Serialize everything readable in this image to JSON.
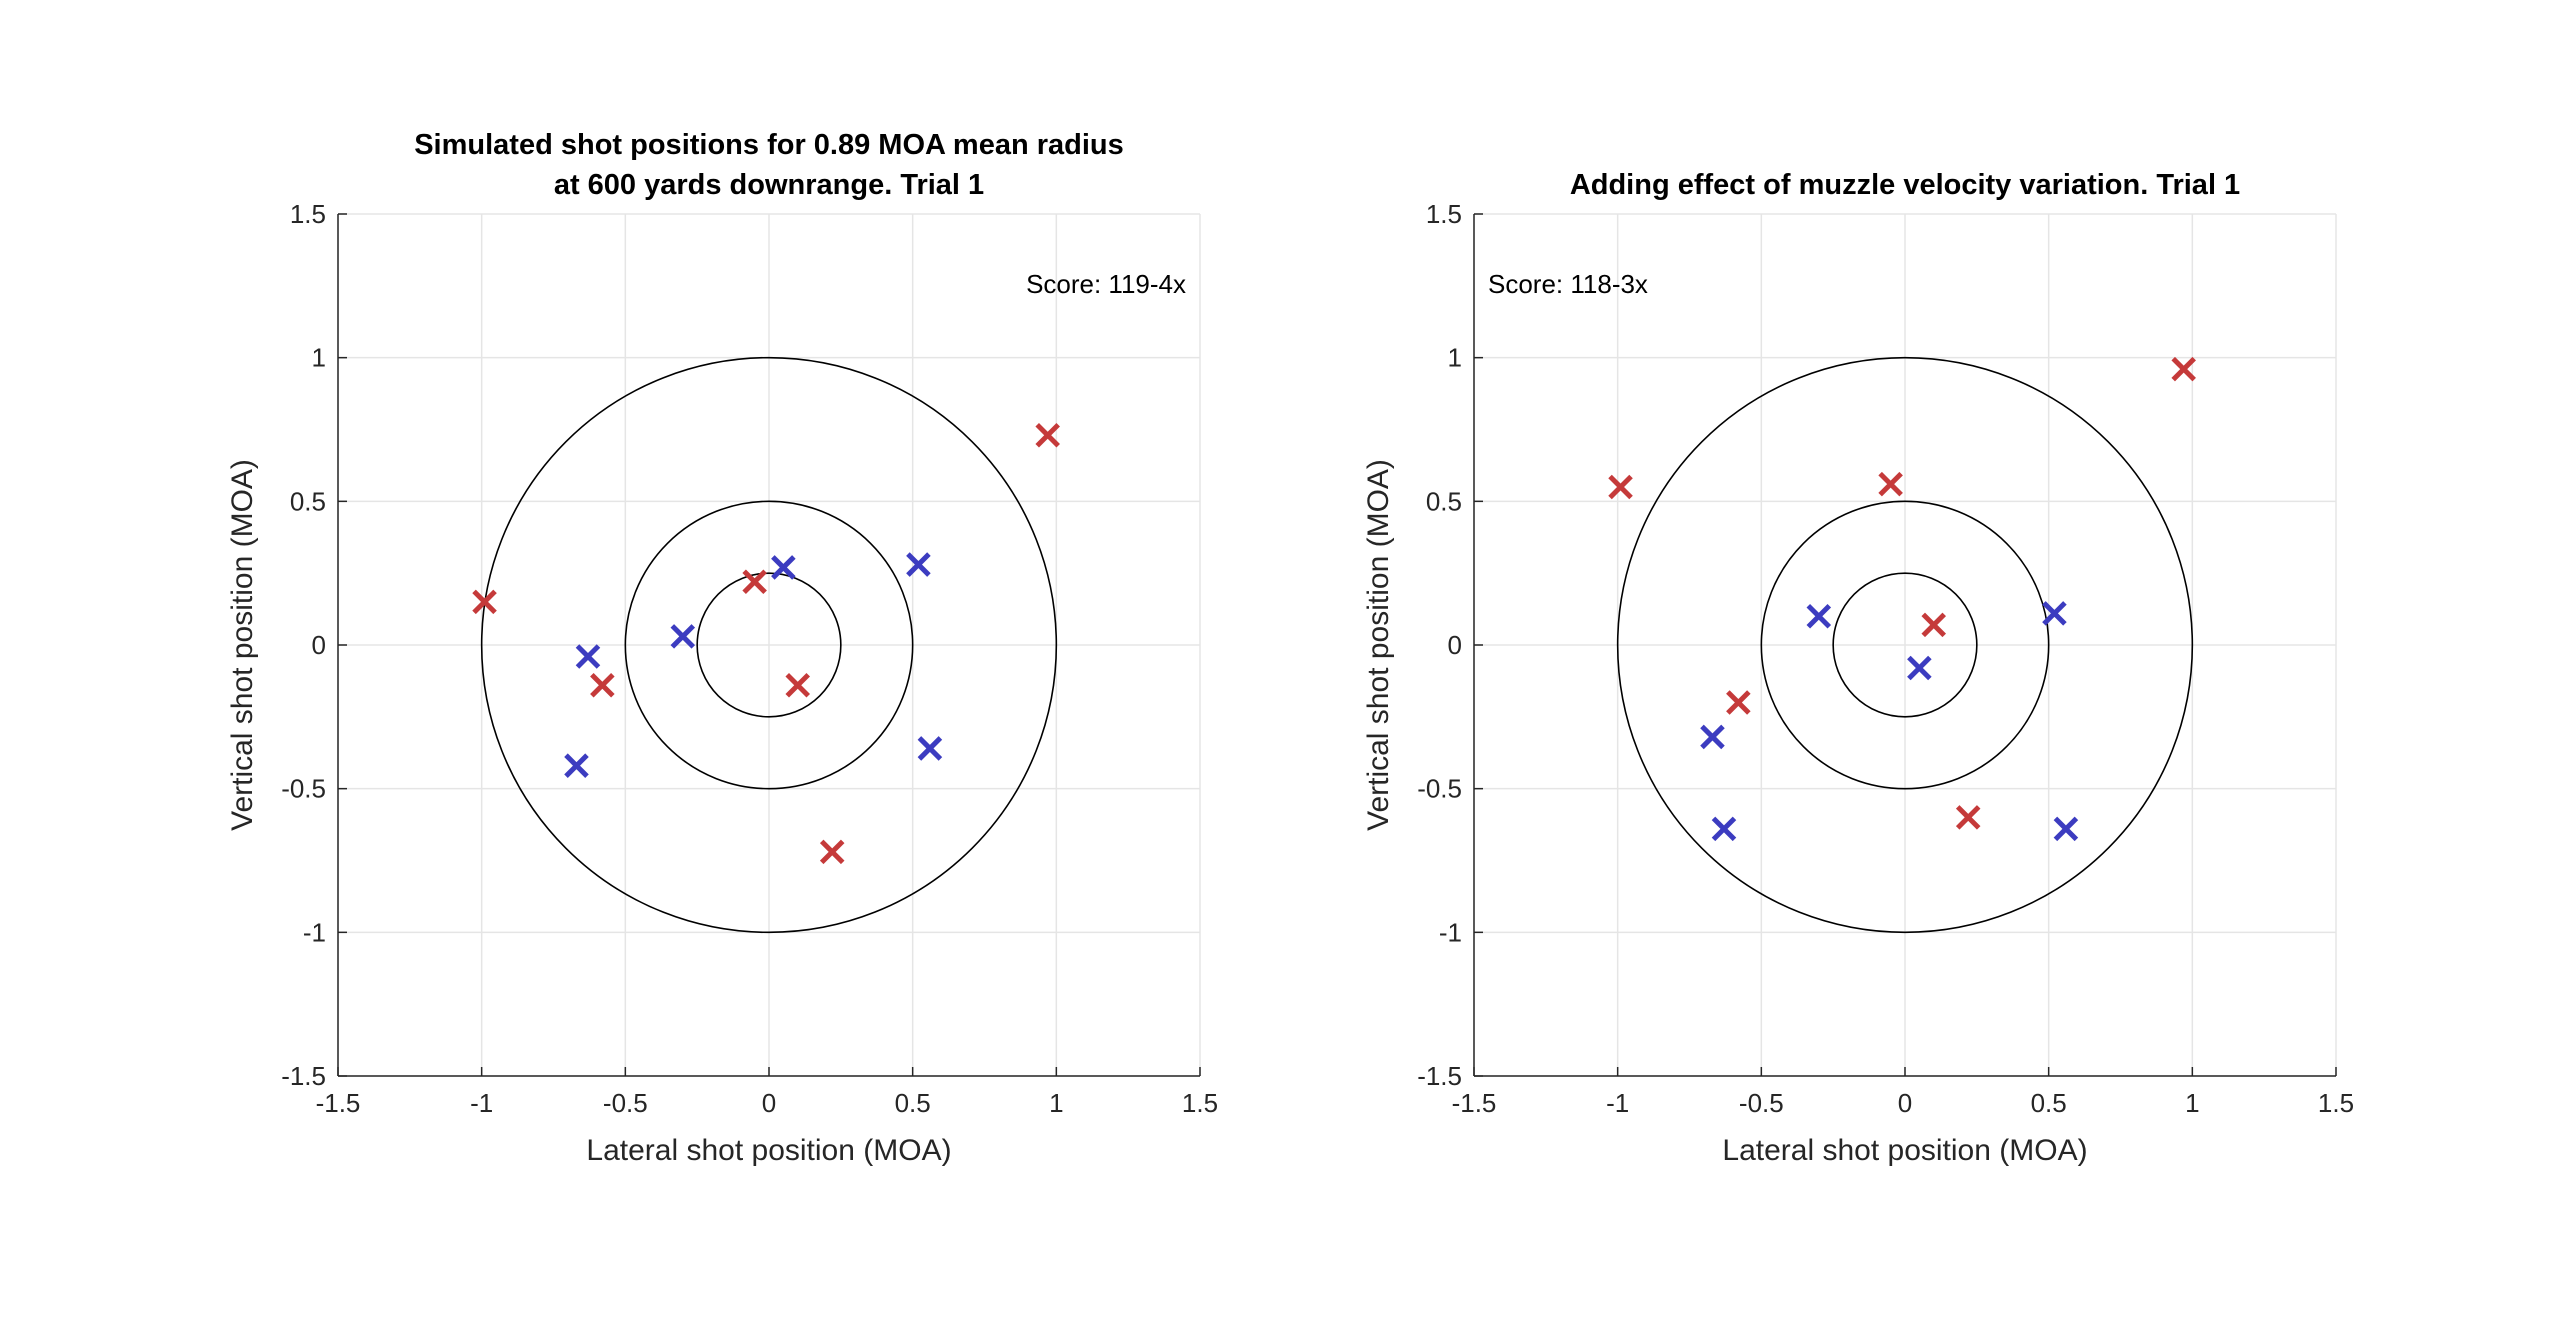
{
  "colors": {
    "red_series": "#c53a3a",
    "blue_series": "#3c3cc0",
    "grid": "#e5e5e5",
    "axis": "#262626",
    "ring": "#000000",
    "background": "#ffffff"
  },
  "chart_data": [
    {
      "type": "scatter",
      "marker": "x",
      "title_lines": [
        "Simulated shot positions for 0.89 MOA mean radius",
        "at 600 yards downrange. Trial 1"
      ],
      "xlabel": "Lateral shot position (MOA)",
      "ylabel": "Vertical shot position (MOA)",
      "xlim": [
        -1.5,
        1.5
      ],
      "ylim": [
        -1.5,
        1.5
      ],
      "grid": true,
      "xticks": [
        -1.5,
        -1,
        -0.5,
        0,
        0.5,
        1,
        1.5
      ],
      "yticks": [
        -1.5,
        -1,
        -0.5,
        0,
        0.5,
        1,
        1.5
      ],
      "xtick_labels": [
        "-1.5",
        "-1",
        "-0.5",
        "0",
        "0.5",
        "1",
        "1.5"
      ],
      "ytick_labels": [
        "-1.5",
        "-1",
        "-0.5",
        "0",
        "0.5",
        "1",
        "1.5"
      ],
      "target_ring_radii": [
        0.25,
        0.5,
        1.0
      ],
      "annotation": "Score: 119-4x",
      "annotation_position": "top-right",
      "series": [
        {
          "color": "#c53a3a",
          "x": [
            -0.99,
            -0.58,
            -0.05,
            0.1,
            0.22,
            0.97
          ],
          "y": [
            0.15,
            -0.14,
            0.22,
            -0.14,
            -0.72,
            0.73
          ]
        },
        {
          "color": "#3c3cc0",
          "x": [
            -0.67,
            -0.63,
            -0.3,
            0.05,
            0.52,
            0.56
          ],
          "y": [
            -0.42,
            -0.04,
            0.03,
            0.27,
            0.28,
            -0.36
          ]
        }
      ]
    },
    {
      "type": "scatter",
      "marker": "x",
      "title_lines": [
        "Adding effect of muzzle velocity variation. Trial 1"
      ],
      "xlabel": "Lateral shot position (MOA)",
      "ylabel": "Vertical shot position (MOA)",
      "xlim": [
        -1.5,
        1.5
      ],
      "ylim": [
        -1.5,
        1.5
      ],
      "grid": true,
      "xticks": [
        -1.5,
        -1,
        -0.5,
        0,
        0.5,
        1,
        1.5
      ],
      "yticks": [
        -1.5,
        -1,
        -0.5,
        0,
        0.5,
        1,
        1.5
      ],
      "xtick_labels": [
        "-1.5",
        "-1",
        "-0.5",
        "0",
        "0.5",
        "1",
        "1.5"
      ],
      "ytick_labels": [
        "-1.5",
        "-1",
        "-0.5",
        "0",
        "0.5",
        "1",
        "1.5"
      ],
      "target_ring_radii": [
        0.25,
        0.5,
        1.0
      ],
      "annotation": "Score: 118-3x",
      "annotation_position": "top-left",
      "series": [
        {
          "color": "#c53a3a",
          "x": [
            -0.99,
            -0.58,
            -0.05,
            0.1,
            0.22,
            0.97
          ],
          "y": [
            0.55,
            -0.2,
            0.56,
            0.07,
            -0.6,
            0.96
          ]
        },
        {
          "color": "#3c3cc0",
          "x": [
            -0.67,
            -0.63,
            -0.3,
            0.05,
            0.52,
            0.56
          ],
          "y": [
            -0.32,
            -0.64,
            0.1,
            -0.08,
            0.11,
            -0.64
          ]
        }
      ]
    }
  ]
}
